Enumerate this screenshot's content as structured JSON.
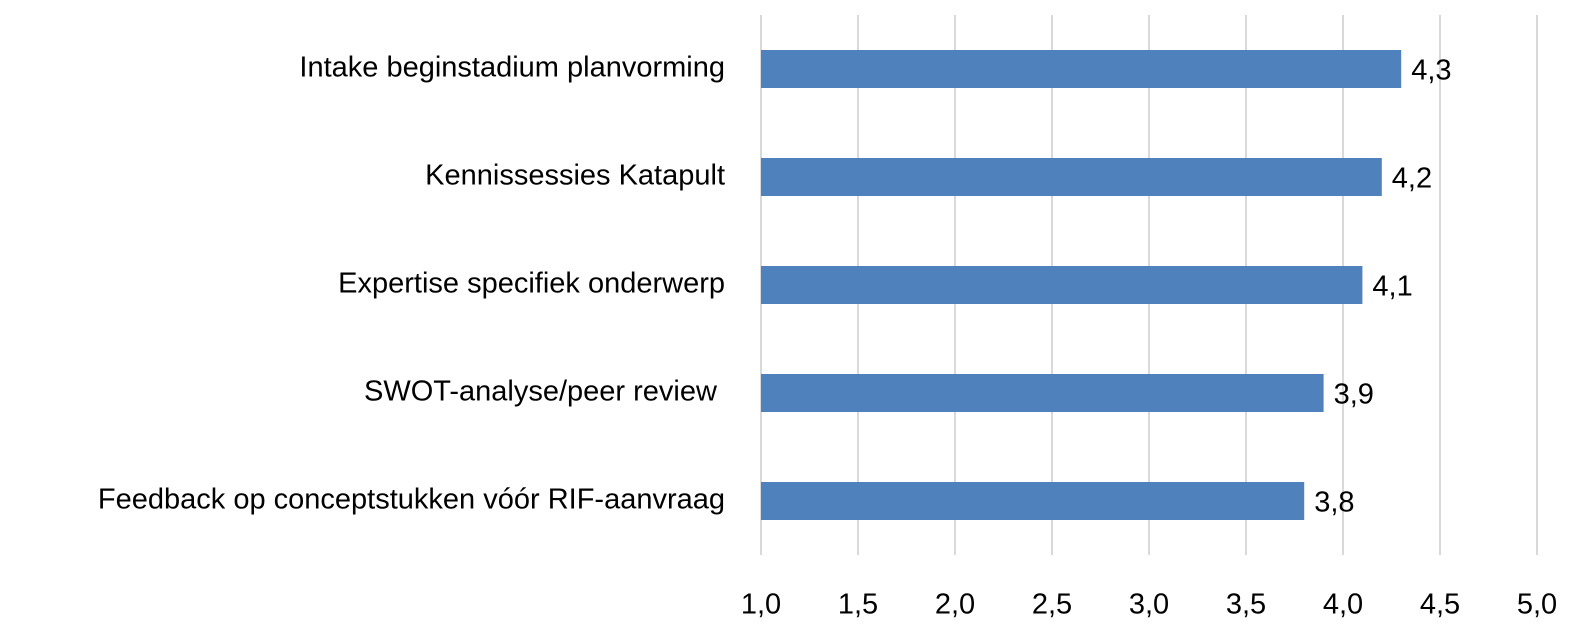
{
  "chart_data": {
    "type": "hbar",
    "categories": [
      "Intake beginstadium planvorming",
      "Kennissessies Katapult",
      "Expertise specifiek onderwerp",
      "SWOT-analyse/peer review ",
      "Feedback op conceptstukken vóór RIF-aanvraag"
    ],
    "values": [
      4.3,
      4.2,
      4.1,
      3.9,
      3.8
    ],
    "value_labels": [
      "4,3",
      "4,2",
      "4,1",
      "3,9",
      "3,8"
    ],
    "color": "#4f81bd",
    "xlim": [
      1,
      5
    ],
    "xticks": [
      {
        "value": 1,
        "label": "1,0"
      },
      {
        "value": 1.5,
        "label": "1,5"
      },
      {
        "value": 2,
        "label": "2,0"
      },
      {
        "value": 2.5,
        "label": "2,5"
      },
      {
        "value": 3,
        "label": "3,0"
      },
      {
        "value": 3.5,
        "label": "3,5"
      },
      {
        "value": 4,
        "label": "4,0"
      },
      {
        "value": 4.5,
        "label": "4,5"
      },
      {
        "value": 5,
        "label": "5,0"
      }
    ],
    "grid": true
  }
}
